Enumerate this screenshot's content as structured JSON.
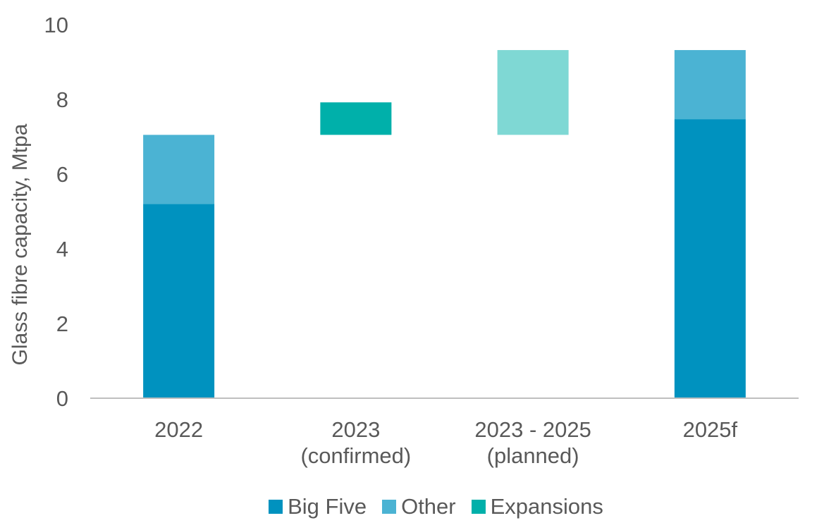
{
  "chart_data": {
    "type": "bar",
    "subtype": "stacked-waterfall",
    "title": "",
    "ylabel": "Glass fibre capacity, Mtpa",
    "xlabel": "",
    "ylim": [
      0,
      10
    ],
    "yticks": [
      0,
      2,
      4,
      6,
      8,
      10
    ],
    "grid": false,
    "legend_position": "bottom",
    "categories": [
      {
        "lines": [
          "2022"
        ]
      },
      {
        "lines": [
          "2023",
          "(confirmed)"
        ]
      },
      {
        "lines": [
          "2023 - 2025",
          "(planned)"
        ]
      },
      {
        "lines": [
          "2025f"
        ]
      }
    ],
    "segments": [
      {
        "category": 0,
        "series": "Big Five",
        "start": 0,
        "end": 5.2,
        "color": "#0092BF"
      },
      {
        "category": 0,
        "series": "Other",
        "start": 5.2,
        "end": 7.05,
        "color": "#4BB3D3"
      },
      {
        "category": 1,
        "series": "Expansions",
        "start": 7.05,
        "end": 7.92,
        "color": "#00B0AA"
      },
      {
        "category": 2,
        "series": "Expansions (planned)",
        "start": 7.05,
        "end": 9.32,
        "color": "#7FD8D4"
      },
      {
        "category": 3,
        "series": "Big Five",
        "start": 0,
        "end": 7.47,
        "color": "#0092BF"
      },
      {
        "category": 3,
        "series": "Other",
        "start": 7.47,
        "end": 9.32,
        "color": "#4BB3D3"
      }
    ],
    "legend": [
      {
        "label": "Big Five",
        "color": "#0092BF"
      },
      {
        "label": "Other",
        "color": "#4BB3D3"
      },
      {
        "label": "Expansions",
        "color": "#00B0AA"
      }
    ]
  }
}
